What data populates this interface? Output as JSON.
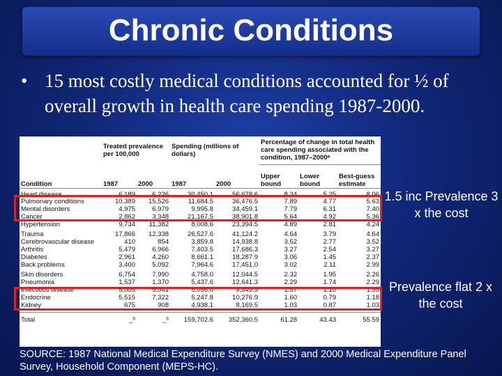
{
  "slide": {
    "title": "Chronic Conditions",
    "bullet_marker": "•",
    "bullet_text": "15 most costly medical conditions accounted for ½ of overall growth in health care spending 1987-2000.",
    "note_1": "1.5 inc Prevalence 3 x the cost",
    "note_2": "Prevalence flat 2 x the cost",
    "source": "SOURCE: 1987 National Medical Expenditure Survey (NMES) and 2000 Medical Expenditure Panel Survey, Household Component (MEPS-HC)."
  },
  "table": {
    "group_headers": [
      "Treated prevalence per 100,000",
      "Spending (millions of dollars)",
      "Percentage of change in total health care spending associated with the condition, 1987–2000ᵃ"
    ],
    "columns": [
      "Condition",
      "1987",
      "2000",
      "1987",
      "2000",
      "Upper bound",
      "Lower bound",
      "Best-guess estimate"
    ],
    "groups": [
      [
        [
          "Heart disease",
          "6,189",
          "6,226",
          "30,450.1",
          "56,678.6",
          "8.34",
          "5.25",
          "8.06"
        ],
        [
          "Pulmonary conditions",
          "10,389",
          "15,526",
          "11,684.5",
          "36,476.5",
          "7.89",
          "4.77",
          "5.63"
        ],
        [
          "Mental disorders",
          "4,975",
          "6,979",
          "9,995.8",
          "34,459.1",
          "7.79",
          "6.31",
          "7.40"
        ],
        [
          "Cancer",
          "2,862",
          "3,348",
          "21,167.5",
          "38,901.8",
          "5.64",
          "4.92",
          "5.36"
        ],
        [
          "Hypertension",
          "9,734",
          "11,382",
          "8,008.6",
          "23,394.5",
          "4.89",
          "2.81",
          "4.24"
        ]
      ],
      [
        [
          "Trauma",
          "17,866",
          "12,338",
          "26,527.6",
          "41,124.2",
          "4.64",
          "3.79",
          "4.64"
        ],
        [
          "Cerebrovascular disease",
          "410",
          "854",
          "3,859.8",
          "14,938.8",
          "3.52",
          "2.77",
          "3.52"
        ],
        [
          "Arthritis",
          "5,479",
          "6,966",
          "7,403.5",
          "17,686.3",
          "3.27",
          "2.54",
          "3.27"
        ],
        [
          "Diabetes",
          "2,961",
          "4,260",
          "8,661.1",
          "18,287.9",
          "3.06",
          "1.45",
          "2.37"
        ],
        [
          "Back problems",
          "3,400",
          "5,092",
          "7,964.6",
          "17,451.0",
          "3.02",
          "2.11",
          "2.99"
        ]
      ],
      [
        [
          "Skin disorders",
          "6,754",
          "7,990",
          "4,758.0",
          "12,044.5",
          "2.32",
          "1.95",
          "2.26"
        ],
        [
          "Pneumonia",
          "1,537",
          "1,370",
          "5,437.6",
          "12,641.3",
          "2.29",
          "1.74",
          "2.29"
        ],
        [
          "Infectious disease",
          "5,005",
          "5,041",
          "5,056.0",
          "9,549.9",
          "1.57",
          "1.10",
          "1.55"
        ],
        [
          "Endocrine",
          "5,515",
          "7,322",
          "5,247.8",
          "10,276.9",
          "1.60",
          "0.79",
          "1.18"
        ],
        [
          "Kidney",
          "675",
          "908",
          "4,938.1",
          "8,169.5",
          "1.03",
          "0.87",
          "1.03"
        ]
      ]
    ],
    "total": [
      "Total",
      "_ᵇ",
      "_ᵇ",
      "159,702.6",
      "352,360.5",
      "61.28",
      "43.43",
      "55.59"
    ]
  }
}
